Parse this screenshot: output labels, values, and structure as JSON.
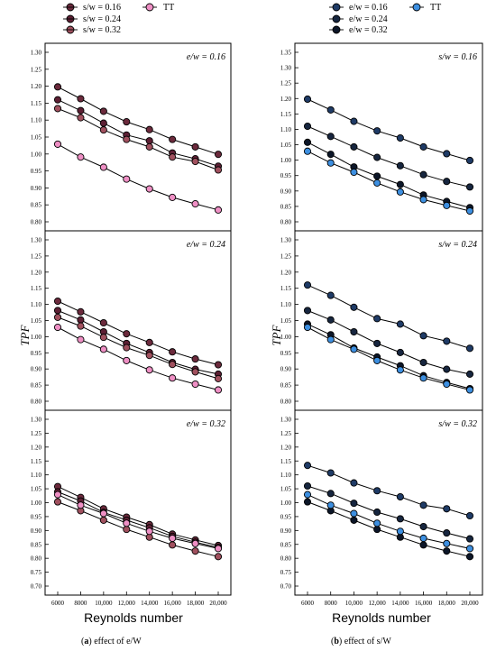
{
  "figure": {
    "caption_a": {
      "letter": "a",
      "text": "effect of e/W"
    },
    "caption_b": {
      "letter": "b",
      "text": "effect of s/W"
    },
    "x_axis_title": "Reynolds number",
    "y_axis_title": "TPF"
  },
  "legend_a": [
    {
      "label": "s/w = 0.16",
      "color": "#6b2a3c"
    },
    {
      "label": "s/w = 0.24",
      "color": "#5c1f33"
    },
    {
      "label": "s/w = 0.32",
      "color": "#a0505e"
    },
    {
      "label": "TT",
      "color": "#ee8fc4"
    }
  ],
  "legend_b": [
    {
      "label": "e/w = 0.16",
      "color": "#1f3b66"
    },
    {
      "label": "e/w = 0.24",
      "color": "#17263f"
    },
    {
      "label": "e/w = 0.32",
      "color": "#0c1628"
    },
    {
      "label": "TT",
      "color": "#3d8fe0"
    }
  ],
  "chart_data": [
    {
      "type": "line",
      "column": "a",
      "annotation": "e/w = 0.16",
      "x": [
        6000,
        8000,
        10000,
        12000,
        14000,
        16000,
        18000,
        20000
      ],
      "ylim": [
        0.8,
        1.3
      ],
      "series": [
        {
          "name": "s/w = 0.16",
          "values": [
            1.198,
            1.163,
            1.126,
            1.095,
            1.072,
            1.043,
            1.021,
            0.999
          ]
        },
        {
          "name": "s/w = 0.24",
          "values": [
            1.16,
            1.128,
            1.091,
            1.056,
            1.039,
            1.003,
            0.986,
            0.964
          ]
        },
        {
          "name": "s/w = 0.32",
          "values": [
            1.134,
            1.107,
            1.071,
            1.043,
            1.021,
            0.991,
            0.978,
            0.953
          ]
        },
        {
          "name": "TT",
          "values": [
            1.029,
            0.991,
            0.961,
            0.926,
            0.897,
            0.872,
            0.853,
            0.835
          ]
        }
      ]
    },
    {
      "type": "line",
      "column": "a",
      "annotation": "e/w = 0.24",
      "x": [
        6000,
        8000,
        10000,
        12000,
        14000,
        16000,
        18000,
        20000
      ],
      "ylim": [
        0.8,
        1.3
      ],
      "series": [
        {
          "name": "s/w = 0.16",
          "values": [
            1.11,
            1.077,
            1.043,
            1.009,
            0.982,
            0.953,
            0.931,
            0.913
          ]
        },
        {
          "name": "s/w = 0.24",
          "values": [
            1.081,
            1.052,
            1.015,
            0.979,
            0.951,
            0.92,
            0.899,
            0.884
          ]
        },
        {
          "name": "s/w = 0.32",
          "values": [
            1.06,
            1.033,
            0.998,
            0.966,
            0.942,
            0.914,
            0.891,
            0.87
          ]
        },
        {
          "name": "TT",
          "values": [
            1.029,
            0.991,
            0.961,
            0.926,
            0.897,
            0.872,
            0.853,
            0.835
          ]
        }
      ]
    },
    {
      "type": "line",
      "column": "a",
      "annotation": "e/w = 0.32",
      "x": [
        6000,
        8000,
        10000,
        12000,
        14000,
        16000,
        18000,
        20000
      ],
      "ylim": [
        0.7,
        1.3
      ],
      "series": [
        {
          "name": "s/w = 0.16",
          "values": [
            1.058,
            1.019,
            0.978,
            0.948,
            0.921,
            0.887,
            0.866,
            0.846
          ]
        },
        {
          "name": "s/w = 0.24",
          "values": [
            1.039,
            1.006,
            0.965,
            0.937,
            0.91,
            0.879,
            0.858,
            0.839
          ]
        },
        {
          "name": "s/w = 0.32",
          "values": [
            1.003,
            0.971,
            0.937,
            0.904,
            0.876,
            0.848,
            0.826,
            0.806
          ]
        },
        {
          "name": "TT",
          "values": [
            1.029,
            0.991,
            0.961,
            0.926,
            0.897,
            0.872,
            0.853,
            0.835
          ]
        }
      ]
    },
    {
      "type": "line",
      "column": "b",
      "annotation": "s/w = 0.16",
      "x": [
        6000,
        8000,
        10000,
        12000,
        14000,
        16000,
        18000,
        20000
      ],
      "ylim": [
        0.8,
        1.35
      ],
      "series": [
        {
          "name": "e/w = 0.16",
          "values": [
            1.198,
            1.163,
            1.126,
            1.095,
            1.072,
            1.043,
            1.021,
            0.999
          ]
        },
        {
          "name": "e/w = 0.24",
          "values": [
            1.11,
            1.077,
            1.043,
            1.009,
            0.982,
            0.953,
            0.931,
            0.913
          ]
        },
        {
          "name": "e/w = 0.32",
          "values": [
            1.058,
            1.019,
            0.978,
            0.948,
            0.921,
            0.887,
            0.866,
            0.846
          ]
        },
        {
          "name": "TT",
          "values": [
            1.029,
            0.991,
            0.961,
            0.926,
            0.897,
            0.872,
            0.853,
            0.835
          ]
        }
      ]
    },
    {
      "type": "line",
      "column": "b",
      "annotation": "s/w = 0.24",
      "x": [
        6000,
        8000,
        10000,
        12000,
        14000,
        16000,
        18000,
        20000
      ],
      "ylim": [
        0.8,
        1.3
      ],
      "series": [
        {
          "name": "e/w = 0.16",
          "values": [
            1.16,
            1.128,
            1.091,
            1.056,
            1.039,
            1.003,
            0.986,
            0.964
          ]
        },
        {
          "name": "e/w = 0.24",
          "values": [
            1.081,
            1.052,
            1.015,
            0.979,
            0.951,
            0.92,
            0.899,
            0.884
          ]
        },
        {
          "name": "e/w = 0.32",
          "values": [
            1.039,
            1.006,
            0.965,
            0.937,
            0.91,
            0.879,
            0.858,
            0.839
          ]
        },
        {
          "name": "TT",
          "values": [
            1.029,
            0.991,
            0.961,
            0.926,
            0.897,
            0.872,
            0.853,
            0.835
          ]
        }
      ]
    },
    {
      "type": "line",
      "column": "b",
      "annotation": "s/w = 0.32",
      "x": [
        6000,
        8000,
        10000,
        12000,
        14000,
        16000,
        18000,
        20000
      ],
      "ylim": [
        0.7,
        1.3
      ],
      "series": [
        {
          "name": "e/w = 0.16",
          "values": [
            1.134,
            1.107,
            1.071,
            1.043,
            1.021,
            0.991,
            0.978,
            0.953
          ]
        },
        {
          "name": "e/w = 0.24",
          "values": [
            1.06,
            1.033,
            0.998,
            0.966,
            0.942,
            0.914,
            0.891,
            0.87
          ]
        },
        {
          "name": "e/w = 0.32",
          "values": [
            1.003,
            0.971,
            0.937,
            0.904,
            0.876,
            0.848,
            0.826,
            0.806
          ]
        },
        {
          "name": "TT",
          "values": [
            1.029,
            0.991,
            0.961,
            0.926,
            0.897,
            0.872,
            0.853,
            0.835
          ]
        }
      ]
    }
  ]
}
